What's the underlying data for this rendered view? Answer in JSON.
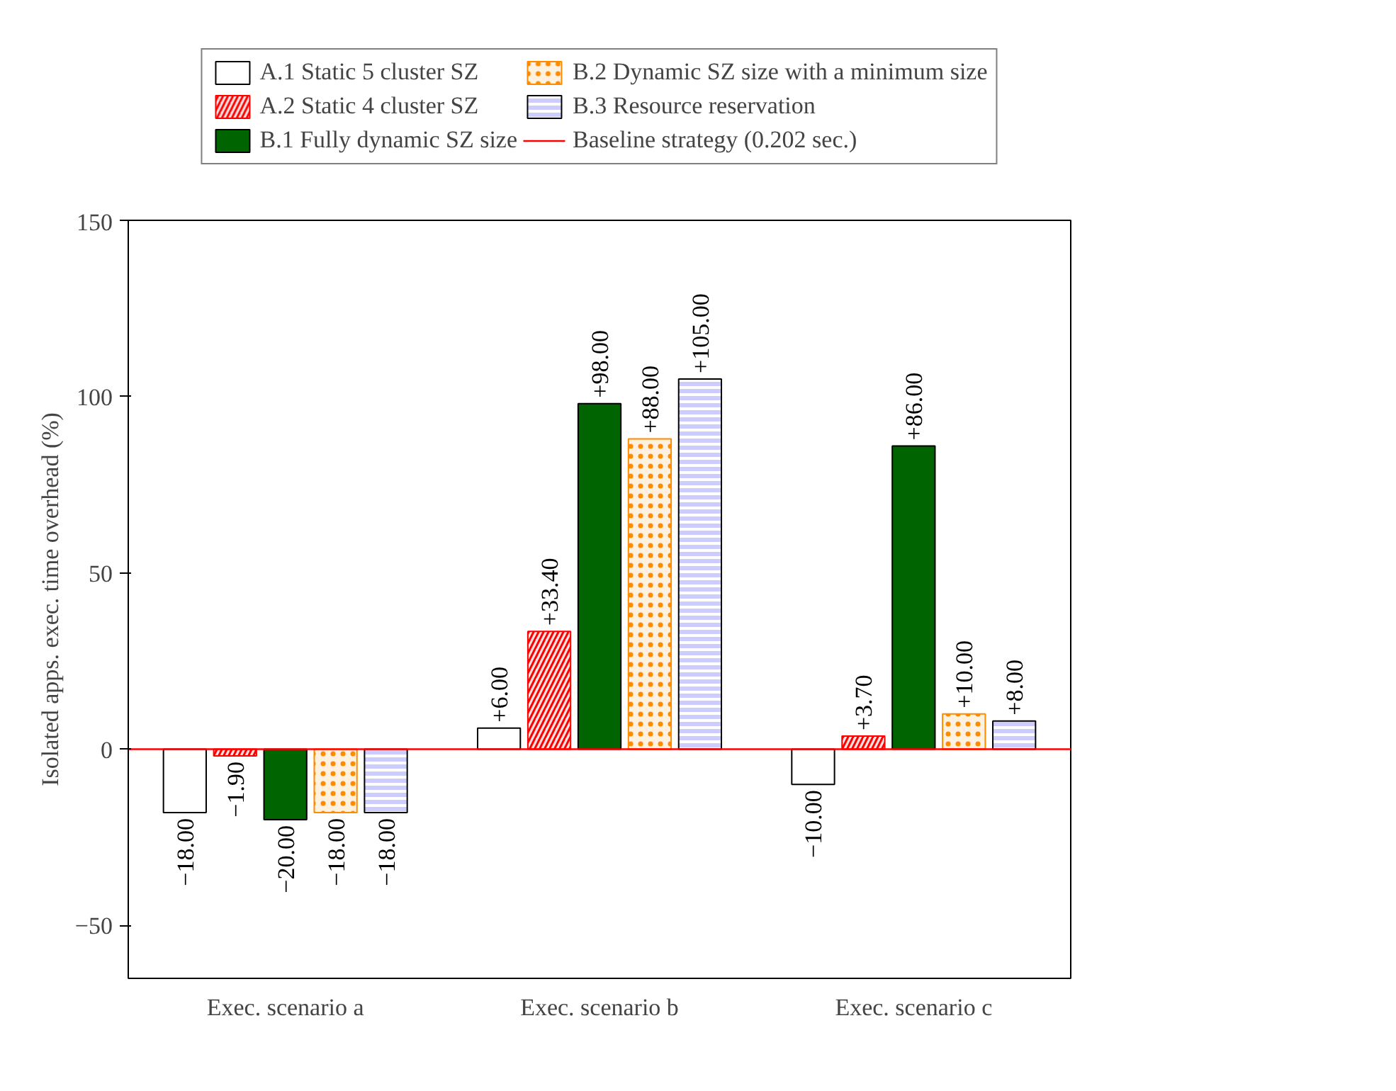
{
  "chart_data": {
    "type": "bar",
    "ylabel": "Isolated apps. exec. time overhead (%)",
    "categories": [
      "Exec. scenario a",
      "Exec. scenario b",
      "Exec. scenario c"
    ],
    "series": [
      {
        "name": "A.1 Static 5 cluster SZ",
        "color": "#ffffff",
        "values": [
          -18,
          6,
          -10
        ],
        "value_labels": [
          "−18.00",
          "+6.00",
          "−10.00"
        ]
      },
      {
        "name": "A.2 Static 4 cluster SZ",
        "color": "#ff0000",
        "values": [
          -1.9,
          33.4,
          3.7
        ],
        "value_labels": [
          "−1.90",
          "+33.40",
          "+3.70"
        ]
      },
      {
        "name": "B.1 Fully dynamic SZ size",
        "color": "#006400",
        "values": [
          -20,
          98,
          86
        ],
        "value_labels": [
          "−20.00",
          "+98.00",
          "+86.00"
        ]
      },
      {
        "name": "B.2 Dynamic SZ size with a minimum size",
        "color": "#ff8c00",
        "values": [
          -18,
          88,
          10
        ],
        "value_labels": [
          "−18.00",
          "+88.00",
          "+10.00"
        ]
      },
      {
        "name": "B.3 Resource reservation",
        "color": "#ccccff",
        "values": [
          -18,
          105,
          8
        ],
        "value_labels": [
          "−18.00",
          "+105.00",
          "+8.00"
        ]
      }
    ],
    "ylim": [
      -65,
      150
    ],
    "yticks": [
      -50,
      0,
      50,
      100,
      150
    ],
    "grid": false,
    "legend": "top",
    "ref_lines": [
      {
        "axis": "y",
        "value": 0,
        "label": "Baseline strategy (0.202 sec.)",
        "color": "#ff0000"
      }
    ]
  }
}
